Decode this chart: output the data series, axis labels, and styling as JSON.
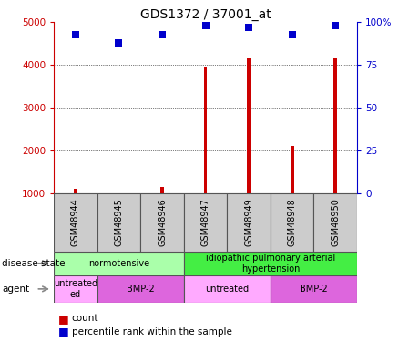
{
  "title": "GDS1372 / 37001_at",
  "samples": [
    "GSM48944",
    "GSM48945",
    "GSM48946",
    "GSM48947",
    "GSM48949",
    "GSM48948",
    "GSM48950"
  ],
  "count_values": [
    1100,
    950,
    1150,
    3950,
    4150,
    2100,
    4150
  ],
  "percentile_values": [
    93,
    88,
    93,
    98,
    97,
    93,
    98
  ],
  "ylim_left": [
    1000,
    5000
  ],
  "ylim_right": [
    0,
    100
  ],
  "yticks_left": [
    1000,
    2000,
    3000,
    4000,
    5000
  ],
  "yticks_right": [
    0,
    25,
    50,
    75,
    100
  ],
  "bar_color": "#cc0000",
  "dot_color": "#0000cc",
  "background_color": "#ffffff",
  "disease_state_groups": [
    {
      "label": "normotensive",
      "start": 0,
      "end": 3,
      "color": "#aaffaa"
    },
    {
      "label": "idiopathic pulmonary arterial\nhypertension",
      "start": 3,
      "end": 7,
      "color": "#44ee44"
    }
  ],
  "agent_groups": [
    {
      "label": "untreated\ned",
      "start": 0,
      "end": 1,
      "color": "#ffaaff"
    },
    {
      "label": "BMP-2",
      "start": 1,
      "end": 3,
      "color": "#dd66dd"
    },
    {
      "label": "untreated",
      "start": 3,
      "end": 5,
      "color": "#ffaaff"
    },
    {
      "label": "BMP-2",
      "start": 5,
      "end": 7,
      "color": "#dd66dd"
    }
  ],
  "tick_label_color_left": "#cc0000",
  "tick_label_color_right": "#0000cc",
  "bar_width": 0.08,
  "dot_size": 30,
  "tick_fontsize": 7.5,
  "title_fontsize": 10,
  "sample_label_fontsize": 7,
  "row_label_fontsize": 7.5,
  "group_label_fontsize": 7,
  "legend_fontsize": 7.5
}
